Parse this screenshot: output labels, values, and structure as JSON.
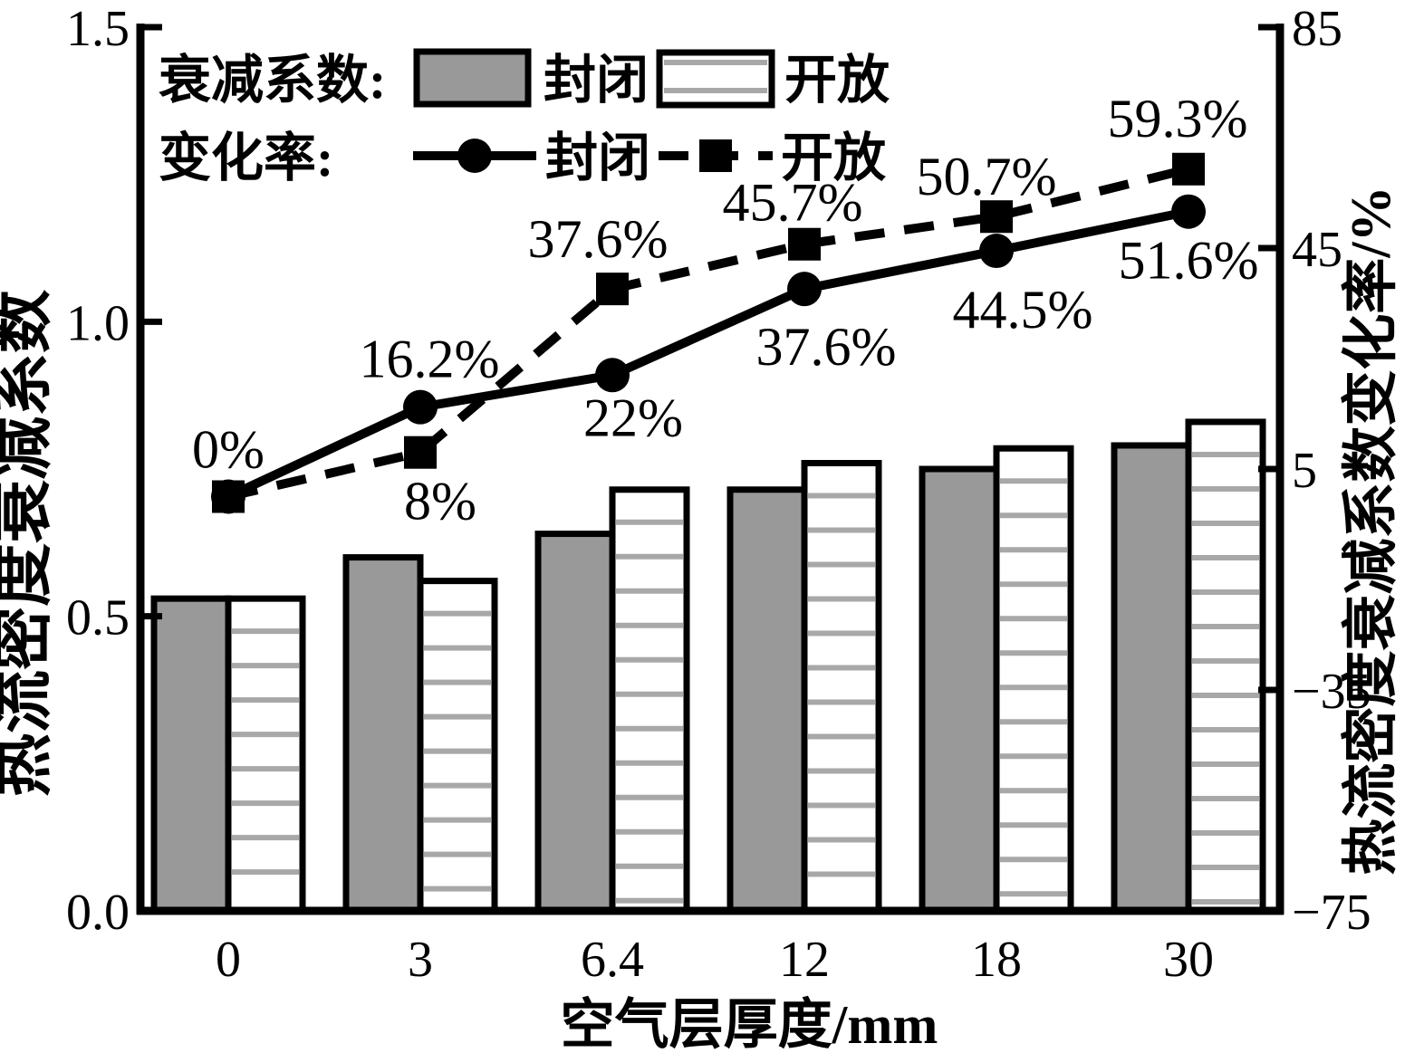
{
  "figure": {
    "background": "#ffffff"
  },
  "colors": {
    "bar_gray": "#999999",
    "stripe_gray": "#a8a8a8",
    "ink": "#000000"
  },
  "chart_data": {
    "type": "bar+line",
    "categories": [
      "0",
      "3",
      "6.4",
      "12",
      "18",
      "30"
    ],
    "xlabel": "空气层厚度/mm",
    "left_axis": {
      "label": "热流密度衰减系数",
      "min": 0,
      "max": 1.5,
      "ticks": [
        "0.0",
        "0.5",
        "1.0",
        "1.5"
      ]
    },
    "right_axis": {
      "label": "热流密度衰减系数变化率/%",
      "min": -75,
      "max": 85,
      "ticks": [
        "85",
        "45",
        "5",
        "−35",
        "−75"
      ]
    },
    "bar_series": [
      {
        "name": "封闭",
        "appearance": "gray",
        "values": [
          0.53,
          0.6,
          0.64,
          0.715,
          0.75,
          0.79
        ]
      },
      {
        "name": "开放",
        "appearance": "white-striped",
        "values": [
          0.53,
          0.56,
          0.715,
          0.76,
          0.785,
          0.83
        ]
      }
    ],
    "line_series": [
      {
        "name": "封闭",
        "marker": "circle",
        "line": "solid",
        "values": [
          0,
          16.2,
          22,
          37.6,
          44.5,
          51.6
        ],
        "labels": [
          "0%",
          "16.2%",
          "22%",
          "37.6%",
          "44.5%",
          "51.6%"
        ]
      },
      {
        "name": "开放",
        "marker": "square",
        "line": "dashed",
        "values": [
          0,
          8,
          37.6,
          45.7,
          50.7,
          59.3
        ],
        "labels": [
          "",
          "8%",
          "37.6%",
          "45.7%",
          "50.7%",
          "59.3%"
        ]
      }
    ],
    "legend": {
      "bars_title": "衰减系数:",
      "lines_title": "变化率:",
      "closed_label": "封闭",
      "open_label": "开放"
    }
  }
}
